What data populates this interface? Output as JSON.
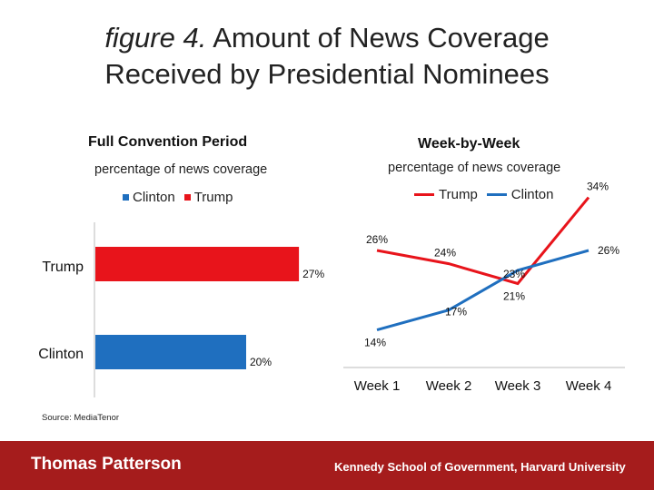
{
  "title": {
    "italic": "figure 4.",
    "main": " Amount of News Coverage",
    "line2": "Received by Presidential Nominees"
  },
  "colors": {
    "clinton": "#1f6fbf",
    "trump": "#e8141b",
    "footer": "#a51c1c"
  },
  "source": "Source: MediaTenor",
  "footer": {
    "left": "Thomas Patterson",
    "right": "Kennedy School of Government, Harvard University"
  },
  "chart_data": [
    {
      "type": "bar",
      "orientation": "horizontal",
      "title": "Full Convention Period",
      "xlabel": "percentage of news coverage",
      "legend": [
        "Clinton",
        "Trump"
      ],
      "categories": [
        "Trump",
        "Clinton"
      ],
      "values": [
        27,
        20
      ],
      "value_labels": [
        "27%",
        "20%"
      ],
      "xlim": [
        0,
        30
      ]
    },
    {
      "type": "line",
      "title": "Week-by-Week",
      "ylabel": "percentage of news coverage",
      "legend": [
        "Trump",
        "Clinton"
      ],
      "categories": [
        "Week 1",
        "Week 2",
        "Week 3",
        "Week 4"
      ],
      "series": [
        {
          "name": "Trump",
          "values": [
            26,
            24,
            21,
            34
          ],
          "labels": [
            "26%",
            "24%",
            "21%",
            "34%"
          ]
        },
        {
          "name": "Clinton",
          "values": [
            14,
            17,
            23,
            26
          ],
          "labels": [
            "14%",
            "17%",
            "23%",
            "26%"
          ]
        }
      ],
      "ylim": [
        8,
        38
      ]
    }
  ]
}
